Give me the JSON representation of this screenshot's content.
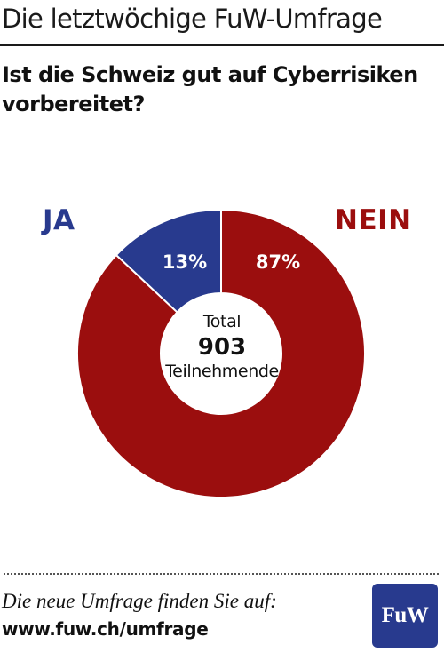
{
  "header": {
    "title": "Die letztwöchige FuW-Umfrage"
  },
  "question": "Ist die Schweiz gut auf Cyberrisiken vorbereitet?",
  "chart_data": {
    "type": "pie",
    "title": "Ist die Schweiz gut auf Cyberrisiken vorbereitet?",
    "categories": [
      "JA",
      "NEIN"
    ],
    "values": [
      13,
      87
    ],
    "value_labels": [
      "13%",
      "87%"
    ],
    "colors": [
      "#283A8E",
      "#9B0E0E"
    ],
    "donut": true,
    "center": {
      "label_top": "Total",
      "value": "903",
      "label_bottom": "Teilnehmende"
    }
  },
  "footer": {
    "text": "Die neue Umfrage finden Sie auf:",
    "url": "www.fuw.ch/umfrage",
    "logo_text": "FuW",
    "logo_color": "#283A8E"
  }
}
